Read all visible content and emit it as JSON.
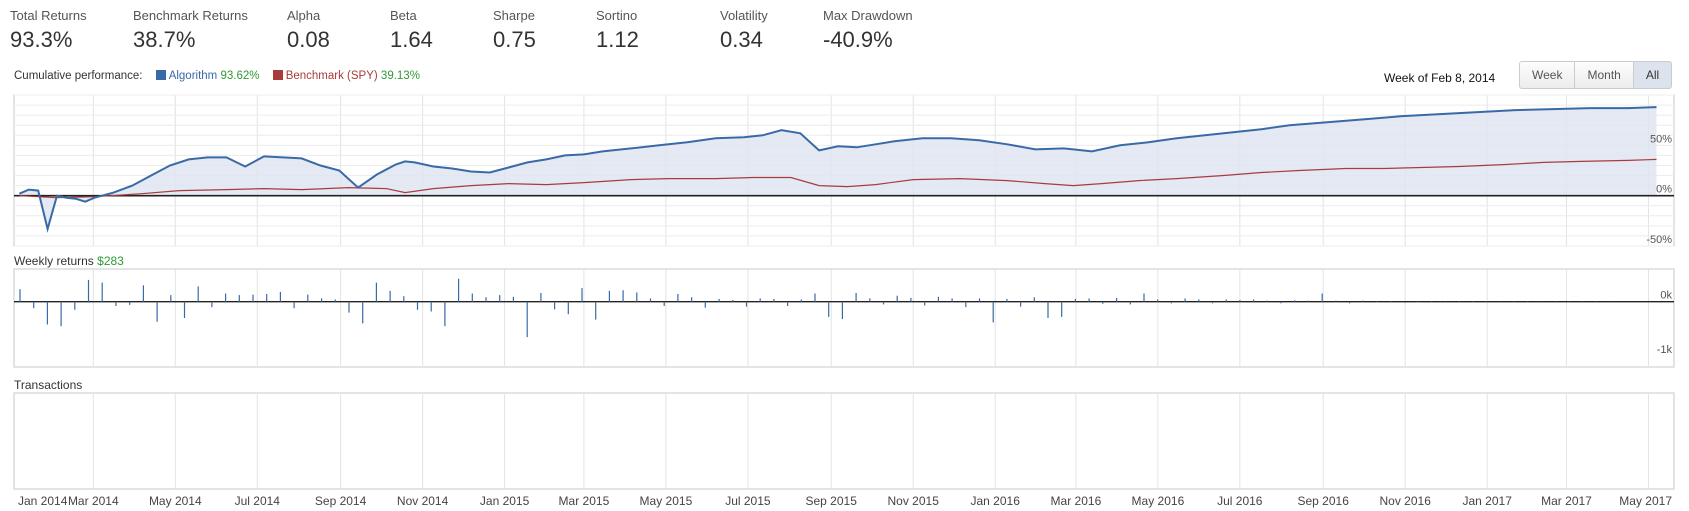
{
  "stats": [
    {
      "label": "Total Returns",
      "value": "93.3%"
    },
    {
      "label": "Benchmark Returns",
      "value": "38.7%"
    },
    {
      "label": "Alpha",
      "value": "0.08"
    },
    {
      "label": "Beta",
      "value": "1.64"
    },
    {
      "label": "Sharpe",
      "value": "0.75"
    },
    {
      "label": "Sortino",
      "value": "1.12"
    },
    {
      "label": "Volatility",
      "value": "0.34"
    },
    {
      "label": "Max Drawdown",
      "value": "-40.9%"
    }
  ],
  "legend": {
    "title": "Cumulative performance:",
    "algorithm_label": "Algorithm",
    "algorithm_value": "93.62%",
    "benchmark_label": "Benchmark (SPY)",
    "benchmark_value": "39.13%"
  },
  "week_of": "Week of Feb 8, 2014",
  "range_buttons": [
    {
      "label": "Week",
      "active": false
    },
    {
      "label": "Month",
      "active": false
    },
    {
      "label": "All",
      "active": true
    }
  ],
  "weekly_returns": {
    "title": "Weekly returns",
    "value": "$283"
  },
  "transactions": {
    "title": "Transactions"
  },
  "colors": {
    "algorithm": "#3a6aa6",
    "benchmark": "#a83c3c",
    "area_fill": "#dfe5f1",
    "positive": "#2e9a35"
  },
  "chart_data": [
    {
      "type": "line",
      "title": "Cumulative performance",
      "ylabel": "",
      "y_ticks": [
        "50%",
        "0%",
        "-50%"
      ],
      "ylim": [
        -50,
        100
      ],
      "grid": true,
      "legend_position": "top-left",
      "series": [
        {
          "name": "Algorithm",
          "x": [
            "2014-01-05",
            "2014-01-12",
            "2014-01-19",
            "2014-01-26",
            "2014-02-02",
            "2014-02-09",
            "2014-02-16",
            "2014-02-23",
            "2014-03-02",
            "2014-03-16",
            "2014-03-30",
            "2014-04-13",
            "2014-04-27",
            "2014-05-11",
            "2014-05-25",
            "2014-06-08",
            "2014-06-22",
            "2014-07-06",
            "2014-07-20",
            "2014-08-03",
            "2014-08-17",
            "2014-08-31",
            "2014-09-14",
            "2014-09-28",
            "2014-10-12",
            "2014-10-19",
            "2014-10-26",
            "2014-11-09",
            "2014-11-23",
            "2014-12-07",
            "2014-12-21",
            "2015-01-04",
            "2015-01-18",
            "2015-02-01",
            "2015-02-15",
            "2015-03-01",
            "2015-03-15",
            "2015-04-05",
            "2015-04-26",
            "2015-05-17",
            "2015-06-07",
            "2015-06-28",
            "2015-07-12",
            "2015-07-26",
            "2015-08-09",
            "2015-08-23",
            "2015-09-06",
            "2015-09-20",
            "2015-10-04",
            "2015-10-18",
            "2015-11-08",
            "2015-11-29",
            "2015-12-20",
            "2016-01-10",
            "2016-01-31",
            "2016-02-21",
            "2016-03-13",
            "2016-04-03",
            "2016-04-24",
            "2016-05-15",
            "2016-06-05",
            "2016-06-26",
            "2016-07-17",
            "2016-08-07",
            "2016-09-04",
            "2016-10-02",
            "2016-10-30",
            "2016-11-27",
            "2016-12-25",
            "2017-01-22",
            "2017-02-19",
            "2017-03-19",
            "2017-04-16",
            "2017-05-07"
          ],
          "values": [
            2,
            6,
            5,
            -33,
            0,
            -2,
            -3,
            -6,
            -2,
            3,
            10,
            20,
            30,
            36,
            38,
            38,
            29,
            39,
            38,
            37,
            30,
            25,
            8,
            21,
            31,
            34,
            33,
            29,
            27,
            24,
            23,
            28,
            33,
            36,
            40,
            41,
            44,
            47,
            50,
            53,
            57,
            58,
            60,
            65,
            62,
            45,
            49,
            48,
            51,
            54,
            57,
            57,
            55,
            51,
            46,
            47,
            44,
            50,
            53,
            57,
            60,
            63,
            66,
            70,
            73,
            76,
            79,
            81,
            83,
            85,
            86,
            87,
            87,
            88
          ]
        },
        {
          "name": "Benchmark (SPY)",
          "x": [
            "2014-01-05",
            "2014-02-02",
            "2014-03-02",
            "2014-04-06",
            "2014-05-04",
            "2014-06-08",
            "2014-07-06",
            "2014-08-03",
            "2014-09-07",
            "2014-10-05",
            "2014-10-19",
            "2014-11-09",
            "2014-12-07",
            "2015-01-04",
            "2015-02-01",
            "2015-03-01",
            "2015-04-05",
            "2015-05-03",
            "2015-06-07",
            "2015-07-05",
            "2015-08-02",
            "2015-08-23",
            "2015-09-13",
            "2015-10-04",
            "2015-11-01",
            "2015-12-06",
            "2016-01-10",
            "2016-02-07",
            "2016-02-28",
            "2016-03-20",
            "2016-04-17",
            "2016-05-15",
            "2016-06-19",
            "2016-07-17",
            "2016-08-14",
            "2016-09-18",
            "2016-10-16",
            "2016-11-13",
            "2016-12-11",
            "2017-01-15",
            "2017-02-12",
            "2017-03-12",
            "2017-04-16",
            "2017-05-07"
          ],
          "values": [
            0,
            -2,
            -1,
            2,
            5,
            6,
            7,
            6,
            8,
            7,
            3,
            7,
            10,
            12,
            11,
            13,
            16,
            17,
            17,
            18,
            18,
            10,
            9,
            11,
            16,
            17,
            15,
            12,
            10,
            12,
            15,
            17,
            20,
            23,
            25,
            27,
            27,
            28,
            29,
            31,
            33,
            34,
            35,
            36
          ]
        }
      ]
    },
    {
      "type": "bar",
      "title": "Weekly returns",
      "y_ticks": [
        "0k",
        "-1k"
      ],
      "ylim": [
        -1200,
        600
      ],
      "grid": true,
      "x_ticks": [
        "Jan 2014",
        "Mar 2014",
        "May 2014",
        "Jul 2014",
        "Sep 2014",
        "Nov 2014",
        "Jan 2015",
        "Mar 2015",
        "May 2015",
        "Jul 2015",
        "Sep 2015",
        "Nov 2015",
        "Jan 2016",
        "Mar 2016",
        "May 2016",
        "Jul 2016",
        "Sep 2016",
        "Nov 2016",
        "Jan 2017",
        "Mar 2017",
        "May 2017"
      ],
      "series": [
        {
          "name": "Weekly returns",
          "values": [
            230,
            -120,
            -420,
            -450,
            -150,
            400,
            350,
            -80,
            -60,
            300,
            -370,
            120,
            -300,
            280,
            -100,
            150,
            120,
            130,
            140,
            180,
            -120,
            130,
            60,
            40,
            -200,
            -400,
            350,
            200,
            100,
            -150,
            -180,
            -450,
            420,
            150,
            80,
            120,
            90,
            -650,
            160,
            -140,
            -230,
            250,
            -330,
            200,
            210,
            170,
            60,
            -80,
            140,
            80,
            -110,
            50,
            30,
            -90,
            60,
            50,
            -80,
            40,
            150,
            -280,
            -320,
            160,
            60,
            -50,
            110,
            70,
            -70,
            90,
            60,
            -100,
            60,
            -380,
            50,
            -90,
            80,
            -300,
            -280,
            50,
            60,
            -40,
            70,
            -50,
            150,
            40,
            -30,
            60,
            40,
            -30,
            40,
            30,
            40,
            20,
            -30,
            25,
            20,
            150,
            20,
            -30,
            20,
            15,
            10,
            -20,
            15,
            10,
            -15,
            10,
            12,
            8,
            -10,
            8,
            10,
            -8,
            6,
            5,
            4,
            6,
            5
          ]
        }
      ]
    }
  ]
}
